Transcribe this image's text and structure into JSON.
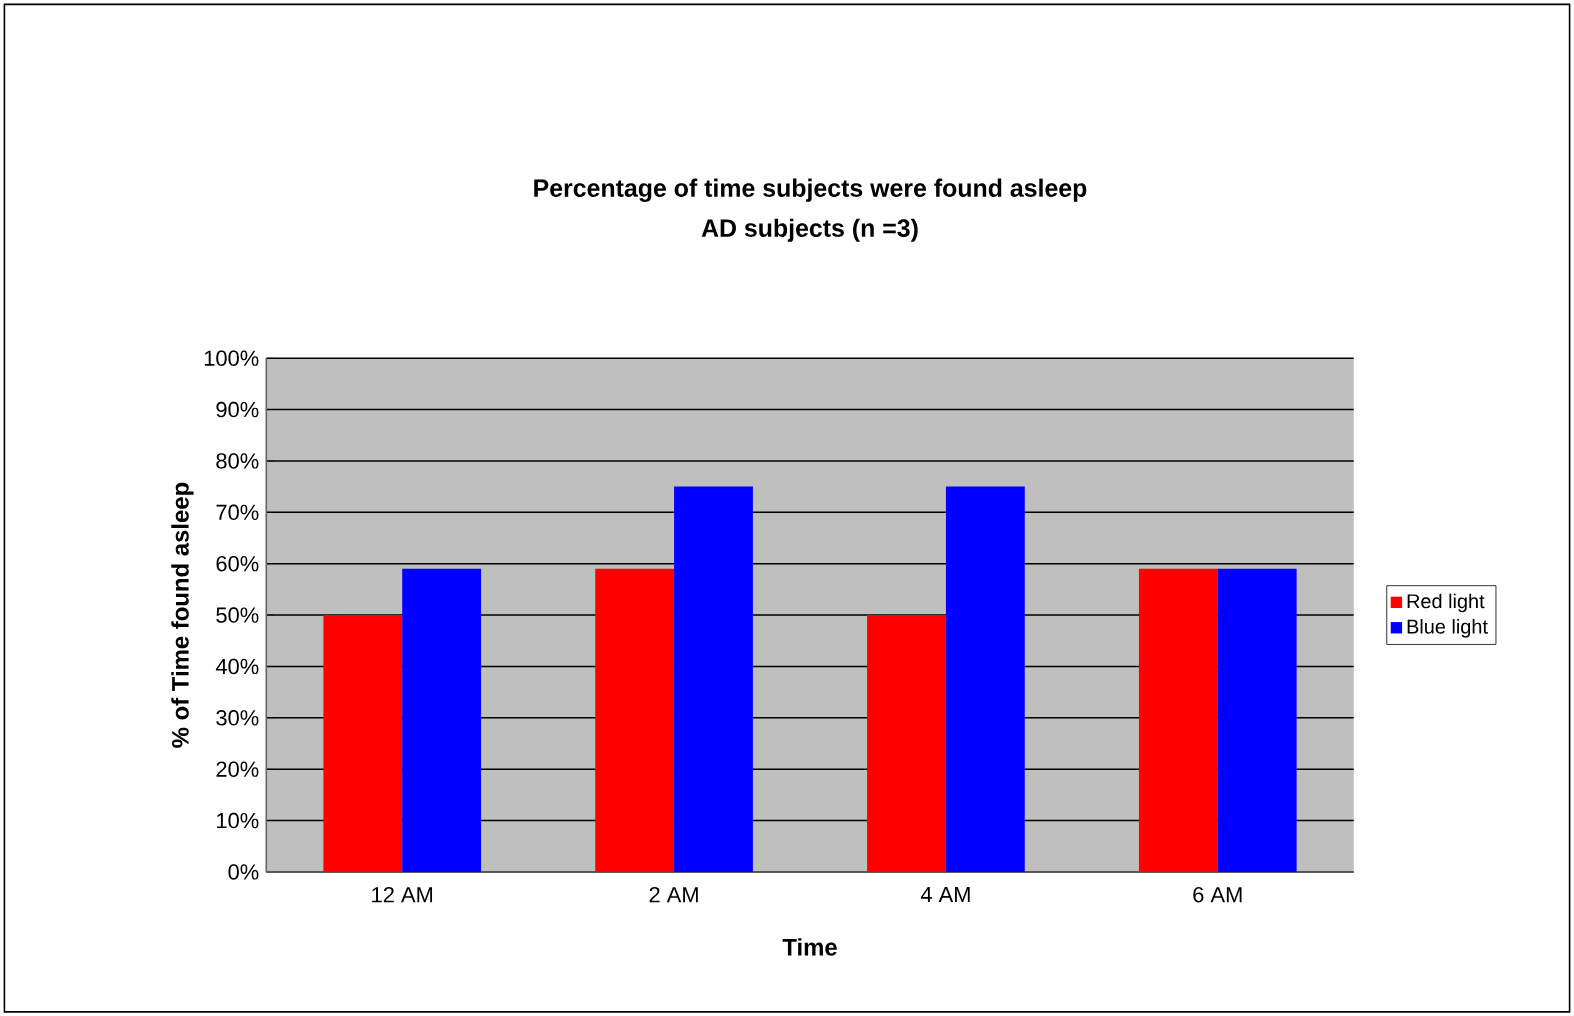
{
  "chart_data": {
    "type": "bar",
    "title": "Percentage of time subjects were found asleep",
    "subtitle": "AD subjects (n =3)",
    "xlabel": "Time",
    "ylabel": "% of Time found asleep",
    "categories": [
      "12 AM",
      "2 AM",
      "4 AM",
      "6 AM"
    ],
    "series": [
      {
        "name": "Red light",
        "color": "#ff0000",
        "values": [
          50,
          59,
          50,
          59
        ]
      },
      {
        "name": "Blue light",
        "color": "#0000ff",
        "values": [
          59,
          75,
          75,
          59
        ]
      }
    ],
    "ylim": [
      0,
      100
    ],
    "yticks": [
      {
        "value": 0,
        "label": "0%"
      },
      {
        "value": 10,
        "label": "10%"
      },
      {
        "value": 20,
        "label": "20%"
      },
      {
        "value": 30,
        "label": "30%"
      },
      {
        "value": 40,
        "label": "40%"
      },
      {
        "value": 50,
        "label": "50%"
      },
      {
        "value": 60,
        "label": "60%"
      },
      {
        "value": 70,
        "label": "70%"
      },
      {
        "value": 80,
        "label": "80%"
      },
      {
        "value": 90,
        "label": "90%"
      },
      {
        "value": 100,
        "label": "100%"
      }
    ],
    "grid": "y",
    "legend": "right"
  }
}
